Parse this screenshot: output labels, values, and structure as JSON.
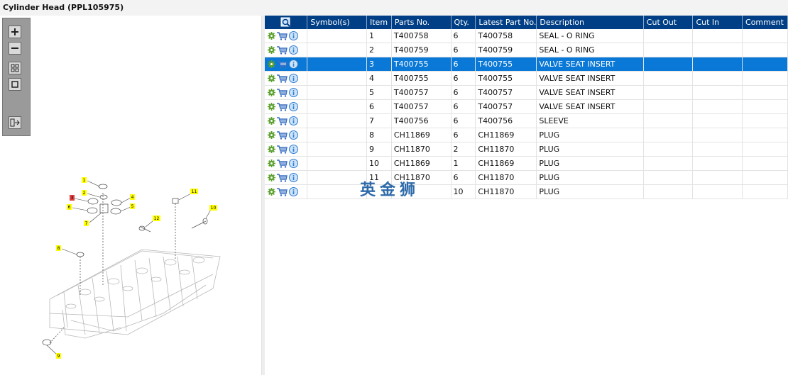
{
  "window": {
    "title": "Cylinder Head (PPL105975)"
  },
  "toolbar": {
    "buttons": [
      {
        "name": "zoom-in-button",
        "icon": "plus-icon"
      },
      {
        "name": "zoom-out-button",
        "icon": "minus-icon"
      },
      {
        "name": "grid-view-button",
        "icon": "grid-icon"
      },
      {
        "name": "single-view-button",
        "icon": "square-icon"
      },
      {
        "name": "export-button",
        "icon": "export-icon"
      }
    ]
  },
  "diagram": {
    "callouts": [
      "1",
      "2",
      "3",
      "4",
      "5",
      "6",
      "7",
      "8",
      "9",
      "10",
      "11",
      "12"
    ],
    "highlighted_callout": "3"
  },
  "table": {
    "headers": [
      "",
      "Symbol(s)",
      "Item",
      "Parts No.",
      "Qty.",
      "Latest Part No.",
      "Description",
      "Cut Out",
      "Cut In",
      "Comment"
    ],
    "rows": [
      {
        "item": "1",
        "part": "T400758",
        "qty": "6",
        "latest": "T400758",
        "desc": "SEAL - O RING",
        "selected": false
      },
      {
        "item": "2",
        "part": "T400759",
        "qty": "6",
        "latest": "T400759",
        "desc": "SEAL - O RING",
        "selected": false
      },
      {
        "item": "3",
        "part": "T400755",
        "qty": "6",
        "latest": "T400755",
        "desc": "VALVE SEAT INSERT",
        "selected": true
      },
      {
        "item": "4",
        "part": "T400755",
        "qty": "6",
        "latest": "T400755",
        "desc": "VALVE SEAT INSERT",
        "selected": false
      },
      {
        "item": "5",
        "part": "T400757",
        "qty": "6",
        "latest": "T400757",
        "desc": "VALVE SEAT INSERT",
        "selected": false
      },
      {
        "item": "6",
        "part": "T400757",
        "qty": "6",
        "latest": "T400757",
        "desc": "VALVE SEAT INSERT",
        "selected": false
      },
      {
        "item": "7",
        "part": "T400756",
        "qty": "6",
        "latest": "T400756",
        "desc": "SLEEVE",
        "selected": false
      },
      {
        "item": "8",
        "part": "CH11869",
        "qty": "6",
        "latest": "CH11869",
        "desc": "PLUG",
        "selected": false
      },
      {
        "item": "9",
        "part": "CH11870",
        "qty": "2",
        "latest": "CH11870",
        "desc": "PLUG",
        "selected": false
      },
      {
        "item": "10",
        "part": "CH11869",
        "qty": "1",
        "latest": "CH11869",
        "desc": "PLUG",
        "selected": false
      },
      {
        "item": "11",
        "part": "CH11870",
        "qty": "6",
        "latest": "CH11870",
        "desc": "PLUG",
        "selected": false
      },
      {
        "item": "",
        "part": "",
        "qty": "10",
        "latest": "CH11870",
        "desc": "PLUG",
        "selected": false
      }
    ]
  },
  "watermark": "英金狮",
  "colors": {
    "header_bg": "#003f86",
    "selected_row": "#0a78d6",
    "callout_yellow": "#ffff00",
    "callout_red": "#e04040",
    "gear_green": "#5aa02c",
    "info_blue": "#2a7fd4",
    "cart_blue": "#3a6fc0"
  }
}
